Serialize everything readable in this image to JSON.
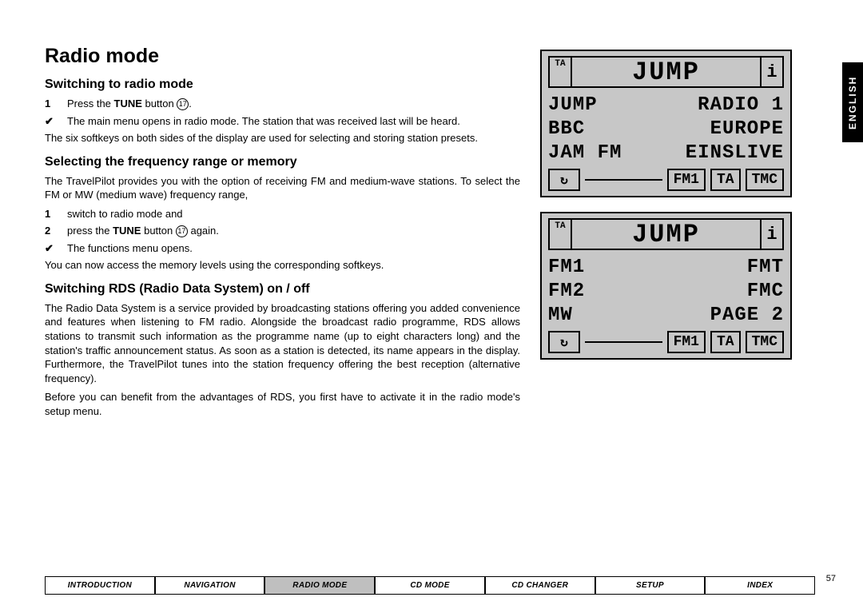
{
  "title": "Radio mode",
  "section1": {
    "heading": "Switching to radio mode",
    "step1_num": "1",
    "step1_text_before": "Press the ",
    "step1_bold": "TUNE",
    "step1_text_after": " button ",
    "step1_ref": "17",
    "step1_end": ".",
    "result_text": "The main menu opens in radio mode. The station that was received last will be heard.",
    "para": "The six softkeys on both sides of the display are used for selecting and storing station presets."
  },
  "section2": {
    "heading": "Selecting the frequency range or memory",
    "para1": "The TravelPilot provides you with the option of receiving FM and medium-wave stations. To select the FM or MW (medium wave) frequency range,",
    "step1_num": "1",
    "step1_text": "switch to radio mode and",
    "step2_num": "2",
    "step2_before": "press the ",
    "step2_bold": "TUNE",
    "step2_after": " button ",
    "step2_ref": "17",
    "step2_end": " again.",
    "result_text": "The functions menu opens.",
    "para2": "You can now access the memory levels using the corresponding softkeys."
  },
  "section3": {
    "heading_before": "Switching RDS (",
    "heading_r": "R",
    "heading_mid1": "adio ",
    "heading_d": "D",
    "heading_mid2": "ata ",
    "heading_s": "S",
    "heading_after": "ystem) on / off",
    "para1": "The Radio Data System is a service provided by broadcasting stations offering you added convenience and features when listening to FM radio. Alongside the broadcast radio programme, RDS allows stations to transmit such information as the programme name (up to eight characters long) and the station's traffic announcement status. As soon as a station is detected, its name appears in the display. Furthermore, the TravelPilot tunes into the station frequency offering the best reception (alternative frequency).",
    "para2": "Before you can benefit from the advantages of RDS, you first have to activate it in the radio mode's setup menu."
  },
  "lcd1": {
    "ta": "TA",
    "title": "JUMP",
    "info": "i",
    "r1l": "JUMP",
    "r1r": "RADIO 1",
    "r2l": "BBC",
    "r2r": "EUROPE",
    "r3l": "JAM FM",
    "r3r": "EINSLIVE",
    "b_icon": "↻",
    "b1": "FM1",
    "b2": "TA",
    "b3": "TMC"
  },
  "lcd2": {
    "ta": "TA",
    "title": "JUMP",
    "info": "i",
    "r1l": "FM1",
    "r1r": "FMT",
    "r2l": "FM2",
    "r2r": "FMC",
    "r3l": "MW",
    "r3r": "PAGE 2",
    "b_icon": "↻",
    "b1": "FM1",
    "b2": "TA",
    "b3": "TMC"
  },
  "lang": "ENGLISH",
  "nav": {
    "items": [
      "Introduction",
      "Navigation",
      "Radio Mode",
      "CD Mode",
      "CD Changer",
      "Setup",
      "Index"
    ],
    "active_index": 2
  },
  "page_number": "57"
}
